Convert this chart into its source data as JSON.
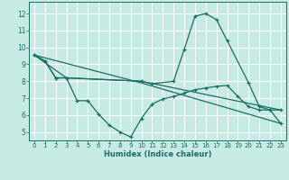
{
  "xlabel": "Humidex (Indice chaleur)",
  "xlim": [
    -0.5,
    23.5
  ],
  "ylim": [
    4.5,
    12.7
  ],
  "yticks": [
    5,
    6,
    7,
    8,
    9,
    10,
    11,
    12
  ],
  "x_ticks": [
    0,
    1,
    2,
    3,
    4,
    5,
    6,
    7,
    8,
    9,
    10,
    11,
    12,
    13,
    14,
    15,
    16,
    17,
    18,
    19,
    20,
    21,
    22,
    23
  ],
  "bg_color": "#c8eae4",
  "line_color": "#1a6e64",
  "grid_color": "#ffffff",
  "series1_x": [
    0,
    1,
    2,
    3,
    10,
    11,
    13,
    14,
    15,
    16,
    17,
    18,
    20,
    21,
    22,
    23
  ],
  "series1_y": [
    9.55,
    9.2,
    8.2,
    8.2,
    8.0,
    7.85,
    8.0,
    9.9,
    11.85,
    12.0,
    11.65,
    10.4,
    7.9,
    6.5,
    6.3,
    6.3
  ],
  "series2_x": [
    0,
    1,
    2,
    3,
    4,
    5,
    6,
    7,
    8,
    9,
    10,
    11,
    12,
    13,
    14,
    15,
    16,
    17,
    18,
    19,
    20,
    21,
    22,
    23
  ],
  "series2_y": [
    9.55,
    9.2,
    8.2,
    8.2,
    6.85,
    6.85,
    6.05,
    5.4,
    5.0,
    4.7,
    5.8,
    6.65,
    6.95,
    7.1,
    7.3,
    7.5,
    7.6,
    7.7,
    7.75,
    7.1,
    6.5,
    6.3,
    6.3,
    5.5
  ],
  "series3_x": [
    0,
    3,
    10,
    23
  ],
  "series3_y": [
    9.55,
    8.2,
    8.0,
    6.3
  ],
  "series4_x": [
    0,
    10,
    23
  ],
  "series4_y": [
    9.55,
    7.9,
    5.5
  ]
}
